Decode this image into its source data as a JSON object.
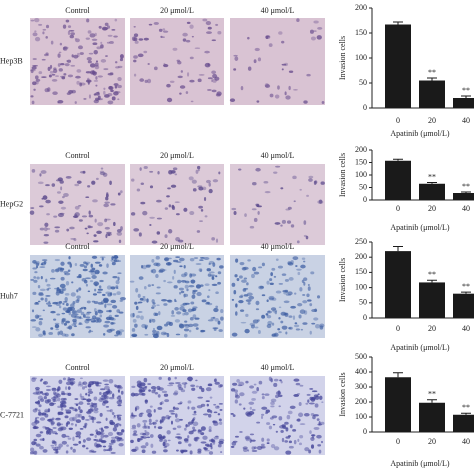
{
  "panels": {
    "rows": [
      {
        "label": "Hep3B",
        "columns": [
          "Control",
          "20 μmol/L",
          "40 μmol/L"
        ]
      },
      {
        "label": "HepG2",
        "columns": [
          "Control",
          "20 μmol/L",
          "40 μmol/L"
        ]
      },
      {
        "label": "Huh7",
        "columns": [
          "Control",
          "20 μmol/L",
          "40 μmol/L"
        ]
      },
      {
        "label": "C-7721",
        "columns": [
          "Control",
          "20 μmol/L",
          "40 μmol/L"
        ]
      }
    ]
  },
  "chart_data": [
    {
      "type": "bar",
      "ylabel": "Invasion cells",
      "xlabel": "Apatinib (μmol/L)",
      "categories": [
        "0",
        "20",
        "40"
      ],
      "values": [
        167,
        55,
        20
      ],
      "errors": [
        5,
        5,
        4
      ],
      "significance": [
        null,
        "**",
        "**"
      ],
      "color": "#1a1a1a",
      "ylim": [
        0,
        200
      ],
      "yticks": [
        0,
        50,
        100,
        150,
        200
      ]
    },
    {
      "type": "bar",
      "ylabel": "Invasion cells",
      "xlabel": "Apatinib (μmol/L)",
      "categories": [
        "0",
        "20",
        "40"
      ],
      "values": [
        157,
        65,
        28
      ],
      "errors": [
        6,
        5,
        4
      ],
      "significance": [
        null,
        "**",
        "**"
      ],
      "color": "#1a1a1a",
      "ylim": [
        0,
        200
      ],
      "yticks": [
        0,
        50,
        100,
        150,
        200
      ]
    },
    {
      "type": "bar",
      "ylabel": "Invasion cells",
      "xlabel": "Apatinib (μmol/L)",
      "categories": [
        "0",
        "20",
        "40"
      ],
      "values": [
        220,
        117,
        80
      ],
      "errors": [
        15,
        7,
        5
      ],
      "significance": [
        null,
        "**",
        "**"
      ],
      "color": "#1a1a1a",
      "ylim": [
        0,
        250
      ],
      "yticks": [
        0,
        50,
        100,
        150,
        200,
        250
      ]
    },
    {
      "type": "bar",
      "ylabel": "Invasion cells",
      "xlabel": "Apatinib (μmol/L)",
      "categories": [
        "0",
        "20",
        "40"
      ],
      "values": [
        365,
        195,
        115
      ],
      "errors": [
        30,
        20,
        10
      ],
      "significance": [
        null,
        "**",
        "**"
      ],
      "color": "#1a1a1a",
      "ylim": [
        0,
        500
      ],
      "yticks": [
        0,
        100,
        200,
        300,
        400,
        500
      ]
    }
  ]
}
